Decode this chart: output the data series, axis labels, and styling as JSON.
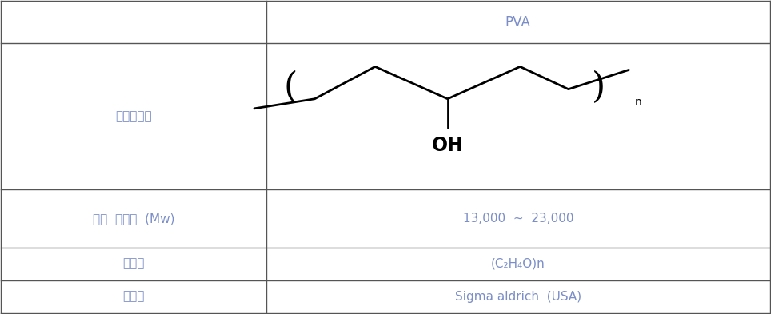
{
  "header_col1": "",
  "header_col2": "PVA",
  "row1_col1": "화학구조식",
  "row2_col1": "평균  분자량  (Mw)",
  "row2_col2": "13,000  ~  23,000",
  "row3_col1": "분자식",
  "row3_col2": "(C₂H₄O)n",
  "row4_col1": "제조사",
  "row4_col2": "Sigma aldrich  (USA)",
  "col_split": 0.345,
  "text_color_korean": "#7B8EC8",
  "text_color_right": "#7B8EC8",
  "header_color": "#7B8EC8",
  "line_color": "#555555",
  "bg_color": "#ffffff",
  "fontsize_label": 11,
  "fontsize_value": 11,
  "fontsize_header": 12,
  "row_tops": [
    1.0,
    0.865,
    0.395,
    0.21,
    0.105
  ],
  "row_bottoms": [
    0.865,
    0.395,
    0.21,
    0.105,
    0.0
  ]
}
